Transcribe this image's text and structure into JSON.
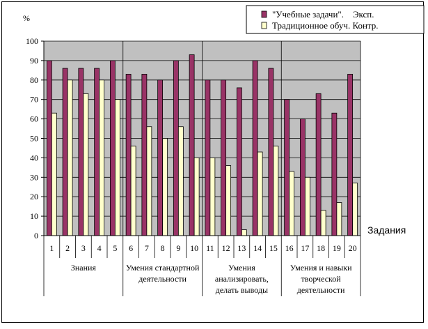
{
  "chart_data": {
    "type": "bar",
    "y_unit": "%",
    "xlabel": "Задания",
    "ylim": [
      0,
      100
    ],
    "y_ticks": [
      0,
      10,
      20,
      30,
      40,
      50,
      60,
      70,
      80,
      90,
      100
    ],
    "grid": true,
    "legend_position": "top-right",
    "categories": [
      "1",
      "2",
      "3",
      "4",
      "5",
      "6",
      "7",
      "8",
      "9",
      "10",
      "11",
      "12",
      "13",
      "14",
      "15",
      "16",
      "17",
      "18",
      "19",
      "20"
    ],
    "groups": [
      {
        "label_lines": [
          "Знания"
        ],
        "from": 0,
        "to": 4
      },
      {
        "label_lines": [
          "Умения стандартной",
          "деятельности"
        ],
        "from": 5,
        "to": 9
      },
      {
        "label_lines": [
          "Умения",
          "анализировать,",
          "делать выводы"
        ],
        "from": 10,
        "to": 14
      },
      {
        "label_lines": [
          "Умения и навыки",
          "творческой",
          "деятельности"
        ],
        "from": 15,
        "to": 19
      }
    ],
    "series": [
      {
        "name": "\"Учебные задачи\".    Эксп.",
        "color": "#993366",
        "values": [
          90,
          86,
          86,
          86,
          90,
          83,
          83,
          80,
          90,
          93,
          80,
          80,
          76,
          90,
          86,
          70,
          60,
          73,
          63,
          83
        ]
      },
      {
        "name": "Традиционное обуч. Контр.",
        "color": "#ffffcc",
        "values": [
          63,
          80,
          73,
          80,
          70,
          46,
          56,
          50,
          56,
          40,
          40,
          36,
          3,
          43,
          46,
          33,
          30,
          13,
          17,
          27
        ]
      }
    ],
    "colors": {
      "plot_bg": "#c0c0c0",
      "stroke": "#000000"
    }
  }
}
